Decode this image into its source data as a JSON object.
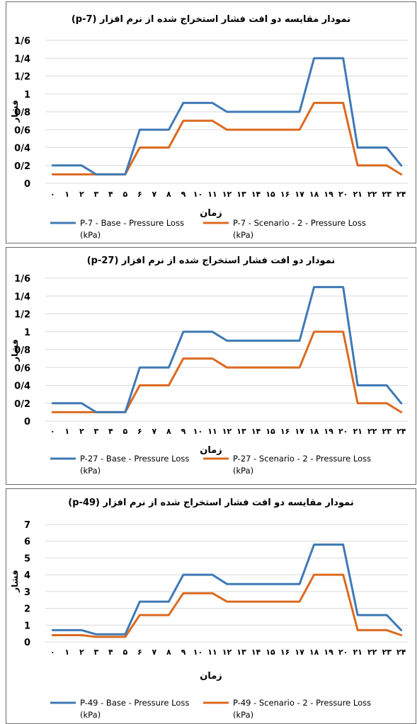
{
  "colors": {
    "base": "#3f79b5",
    "scenario": "#db6a20",
    "grid": "#d9d9d9",
    "text": "#000000"
  },
  "chart_data": [
    {
      "type": "line",
      "title": "نمودار مقایسه دو افت فشار استخراج شده از نرم افزار (p-7)",
      "xlabel": "زمان",
      "ylabel": "فشار",
      "ylim": [
        0,
        1.6
      ],
      "yticks": [
        0,
        0.2,
        0.4,
        0.6,
        0.8,
        1,
        1.2,
        1.4,
        1.6
      ],
      "ytick_labels": [
        "0",
        "0/2",
        "0/4",
        "0/6",
        "0/8",
        "1",
        "1/2",
        "1/4",
        "1/6"
      ],
      "categories": [
        "۰",
        "۱",
        "۲",
        "۳",
        "۴",
        "۵",
        "۶",
        "۷",
        "۸",
        "۹",
        "۱۰",
        "۱۱",
        "۱۲",
        "۱۳",
        "۱۴",
        "۱۵",
        "۱۶",
        "۱۷",
        "۱۸",
        "۱۹",
        "۲۰",
        "۲۱",
        "۲۲",
        "۲۳",
        "۲۴"
      ],
      "grid": true,
      "legend_position": "bottom",
      "series": [
        {
          "name": "P-7 - Base - Pressure Loss",
          "unit": "(kPa)",
          "values": [
            0.2,
            0.2,
            0.2,
            0.1,
            0.1,
            0.1,
            0.6,
            0.6,
            0.6,
            0.9,
            0.9,
            0.9,
            0.8,
            0.8,
            0.8,
            0.8,
            0.8,
            0.8,
            1.4,
            1.4,
            1.4,
            0.4,
            0.4,
            0.4,
            0.2
          ]
        },
        {
          "name": "P-7 - Scenario - 2 - Pressure Loss",
          "unit": "(kPa)",
          "values": [
            0.1,
            0.1,
            0.1,
            0.1,
            0.1,
            0.1,
            0.4,
            0.4,
            0.4,
            0.7,
            0.7,
            0.7,
            0.6,
            0.6,
            0.6,
            0.6,
            0.6,
            0.6,
            0.9,
            0.9,
            0.9,
            0.2,
            0.2,
            0.2,
            0.1
          ]
        }
      ]
    },
    {
      "type": "line",
      "title": "نمودار دو افت فشار استخراج شده از نرم افزار (p-27)",
      "xlabel": "زمان",
      "ylabel": "فشار",
      "ylim": [
        0,
        1.6
      ],
      "yticks": [
        0,
        0.2,
        0.4,
        0.6,
        0.8,
        1,
        1.2,
        1.4,
        1.6
      ],
      "ytick_labels": [
        "0",
        "0/2",
        "0/4",
        "0/6",
        "0/8",
        "1",
        "1/2",
        "1/4",
        "1/6"
      ],
      "categories": [
        "۰",
        "۱",
        "۲",
        "۳",
        "۴",
        "۵",
        "۶",
        "۷",
        "۸",
        "۹",
        "۱۰",
        "۱۱",
        "۱۲",
        "۱۳",
        "۱۴",
        "۱۵",
        "۱۶",
        "۱۷",
        "۱۸",
        "۱۹",
        "۲۰",
        "۲۱",
        "۲۲",
        "۲۳",
        "۲۴"
      ],
      "grid": true,
      "legend_position": "bottom",
      "series": [
        {
          "name": "P-27 - Base - Pressure Loss",
          "unit": "(kPa)",
          "values": [
            0.2,
            0.2,
            0.2,
            0.1,
            0.1,
            0.1,
            0.6,
            0.6,
            0.6,
            1.0,
            1.0,
            1.0,
            0.9,
            0.9,
            0.9,
            0.9,
            0.9,
            0.9,
            1.5,
            1.5,
            1.5,
            0.4,
            0.4,
            0.4,
            0.2
          ]
        },
        {
          "name": "P-27 - Scenario - 2 - Pressure Loss",
          "unit": "(kPa)",
          "values": [
            0.1,
            0.1,
            0.1,
            0.1,
            0.1,
            0.1,
            0.4,
            0.4,
            0.4,
            0.7,
            0.7,
            0.7,
            0.6,
            0.6,
            0.6,
            0.6,
            0.6,
            0.6,
            1.0,
            1.0,
            1.0,
            0.2,
            0.2,
            0.2,
            0.1
          ]
        }
      ]
    },
    {
      "type": "line",
      "title": "نمودار مقایسه دو افت فشار استخراج شده از نرم افزار (p-49)",
      "xlabel": "زمان",
      "ylabel": "فشار",
      "ylim": [
        0,
        7
      ],
      "yticks": [
        0,
        1,
        2,
        3,
        4,
        5,
        6,
        7
      ],
      "ytick_labels": [
        "0",
        "1",
        "2",
        "3",
        "4",
        "5",
        "6",
        "7"
      ],
      "categories": [
        "۰",
        "۱",
        "۲",
        "۳",
        "۴",
        "۵",
        "۶",
        "۷",
        "۸",
        "۹",
        "۱۰",
        "۱۱",
        "۱۲",
        "۱۳",
        "۱۴",
        "۱۵",
        "۱۶",
        "۱۷",
        "۱۸",
        "۱۹",
        "۲۰",
        "۲۱",
        "۲۲",
        "۲۳",
        "۲۴"
      ],
      "grid": true,
      "legend_position": "bottom",
      "series": [
        {
          "name": "P-49 - Base - Pressure Loss",
          "unit": "(kPa)",
          "values": [
            0.7,
            0.7,
            0.7,
            0.45,
            0.45,
            0.45,
            2.4,
            2.4,
            2.4,
            4.0,
            4.0,
            4.0,
            3.45,
            3.45,
            3.45,
            3.45,
            3.45,
            3.45,
            5.8,
            5.8,
            5.8,
            1.6,
            1.6,
            1.6,
            0.7
          ]
        },
        {
          "name": "P-49 - Scenario - 2 - Pressure Loss",
          "unit": "(kPa)",
          "values": [
            0.4,
            0.4,
            0.4,
            0.3,
            0.3,
            0.3,
            1.6,
            1.6,
            1.6,
            2.9,
            2.9,
            2.9,
            2.4,
            2.4,
            2.4,
            2.4,
            2.4,
            2.4,
            4.0,
            4.0,
            4.0,
            0.7,
            0.7,
            0.7,
            0.4
          ]
        }
      ]
    }
  ]
}
